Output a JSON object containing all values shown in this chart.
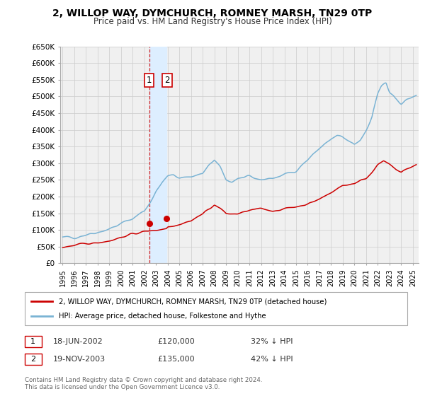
{
  "title": "2, WILLOP WAY, DYMCHURCH, ROMNEY MARSH, TN29 0TP",
  "subtitle": "Price paid vs. HM Land Registry's House Price Index (HPI)",
  "ylim": [
    0,
    650000
  ],
  "yticks": [
    0,
    50000,
    100000,
    150000,
    200000,
    250000,
    300000,
    350000,
    400000,
    450000,
    500000,
    550000,
    600000,
    650000
  ],
  "ytick_labels": [
    "£0",
    "£50K",
    "£100K",
    "£150K",
    "£200K",
    "£250K",
    "£300K",
    "£350K",
    "£400K",
    "£450K",
    "£500K",
    "£550K",
    "£600K",
    "£650K"
  ],
  "xlim_start": 1994.8,
  "xlim_end": 2025.5,
  "xticks": [
    1995,
    1996,
    1997,
    1998,
    1999,
    2000,
    2001,
    2002,
    2003,
    2004,
    2005,
    2006,
    2007,
    2008,
    2009,
    2010,
    2011,
    2012,
    2013,
    2014,
    2015,
    2016,
    2017,
    2018,
    2019,
    2020,
    2021,
    2022,
    2023,
    2024,
    2025
  ],
  "transaction1": {
    "date": "18-JUN-2002",
    "year": 2002.46,
    "price": 120000,
    "label": "1"
  },
  "transaction2": {
    "date": "19-NOV-2003",
    "year": 2003.88,
    "price": 135000,
    "label": "2"
  },
  "legend_line1": "2, WILLOP WAY, DYMCHURCH, ROMNEY MARSH, TN29 0TP (detached house)",
  "legend_line2": "HPI: Average price, detached house, Folkestone and Hythe",
  "table_row1": [
    "1",
    "18-JUN-2002",
    "£120,000",
    "32% ↓ HPI"
  ],
  "table_row2": [
    "2",
    "19-NOV-2003",
    "£135,000",
    "42% ↓ HPI"
  ],
  "footer1": "Contains HM Land Registry data © Crown copyright and database right 2024.",
  "footer2": "This data is licensed under the Open Government Licence v3.0.",
  "hpi_color": "#7ab3d4",
  "price_color": "#cc0000",
  "highlight_color": "#ddeeff",
  "background_color": "#f0f0f0",
  "grid_color": "#cccccc"
}
